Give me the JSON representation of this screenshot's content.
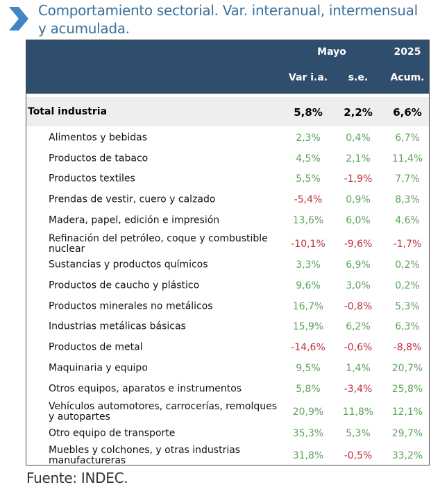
{
  "title": "Comportamiento sectorial. Var. interanual, intermensual y acumulada.",
  "colors": {
    "header": "#2f4e6e",
    "title": "#3a6f98",
    "positive": "#5ea15a",
    "negative": "#c0303a"
  },
  "header": {
    "group_may": "Mayo",
    "group_year": "2025",
    "col_yoy": "Var i.a.",
    "col_se": "s.e.",
    "col_acum": "Acum."
  },
  "total": {
    "label": "Total industria",
    "yoy": "5,8%",
    "se": "2,2%",
    "acum": "6,6%"
  },
  "rows": [
    {
      "label": "Alimentos y bebidas",
      "yoy": "2,3%",
      "se": "0,4%",
      "acum": "6,7%"
    },
    {
      "label": "Productos de tabaco",
      "yoy": "4,5%",
      "se": "2,1%",
      "acum": "11,4%"
    },
    {
      "label": "Productos textiles",
      "yoy": "5,5%",
      "se": "-1,9%",
      "acum": "7,7%"
    },
    {
      "label": "Prendas de vestir, cuero y calzado",
      "yoy": "-5,4%",
      "se": "0,9%",
      "acum": "8,3%"
    },
    {
      "label": "Madera, papel, edición e impresión",
      "yoy": "13,6%",
      "se": "6,0%",
      "acum": "4,6%"
    },
    {
      "label": "Refinación del petróleo, coque y combustible nuclear",
      "yoy": "-10,1%",
      "se": "-9,6%",
      "acum": "-1,7%"
    },
    {
      "label": "Sustancias y productos químicos",
      "yoy": "3,3%",
      "se": "6,9%",
      "acum": "0,2%"
    },
    {
      "label": "Productos de caucho y plástico",
      "yoy": "9,6%",
      "se": "3,0%",
      "acum": "0,2%"
    },
    {
      "label": "Productos minerales no metálicos",
      "yoy": "16,7%",
      "se": "-0,8%",
      "acum": "5,3%"
    },
    {
      "label": "Industrias metálicas básicas",
      "yoy": "15,9%",
      "se": "6,2%",
      "acum": "6,3%"
    },
    {
      "label": "Productos de metal",
      "yoy": "-14,6%",
      "se": "-0,6%",
      "acum": "-8,8%"
    },
    {
      "label": "Maquinaria y equipo",
      "yoy": "9,5%",
      "se": "1,4%",
      "acum": "20,7%"
    },
    {
      "label": "Otros equipos, aparatos e instrumentos",
      "yoy": "5,8%",
      "se": "-3,4%",
      "acum": "25,8%"
    },
    {
      "label": "Vehículos automotores, carrocerías, remolques y autopartes",
      "yoy": "20,9%",
      "se": "11,8%",
      "acum": "12,1%"
    },
    {
      "label": "Otro equipo de transporte",
      "yoy": "35,3%",
      "se": "5,3%",
      "acum": "29,7%"
    },
    {
      "label": "Muebles y colchones, y otras industrias manufactureras",
      "yoy": "31,8%",
      "se": "-0,5%",
      "acum": "33,2%"
    }
  ],
  "source": "Fuente: INDEC."
}
